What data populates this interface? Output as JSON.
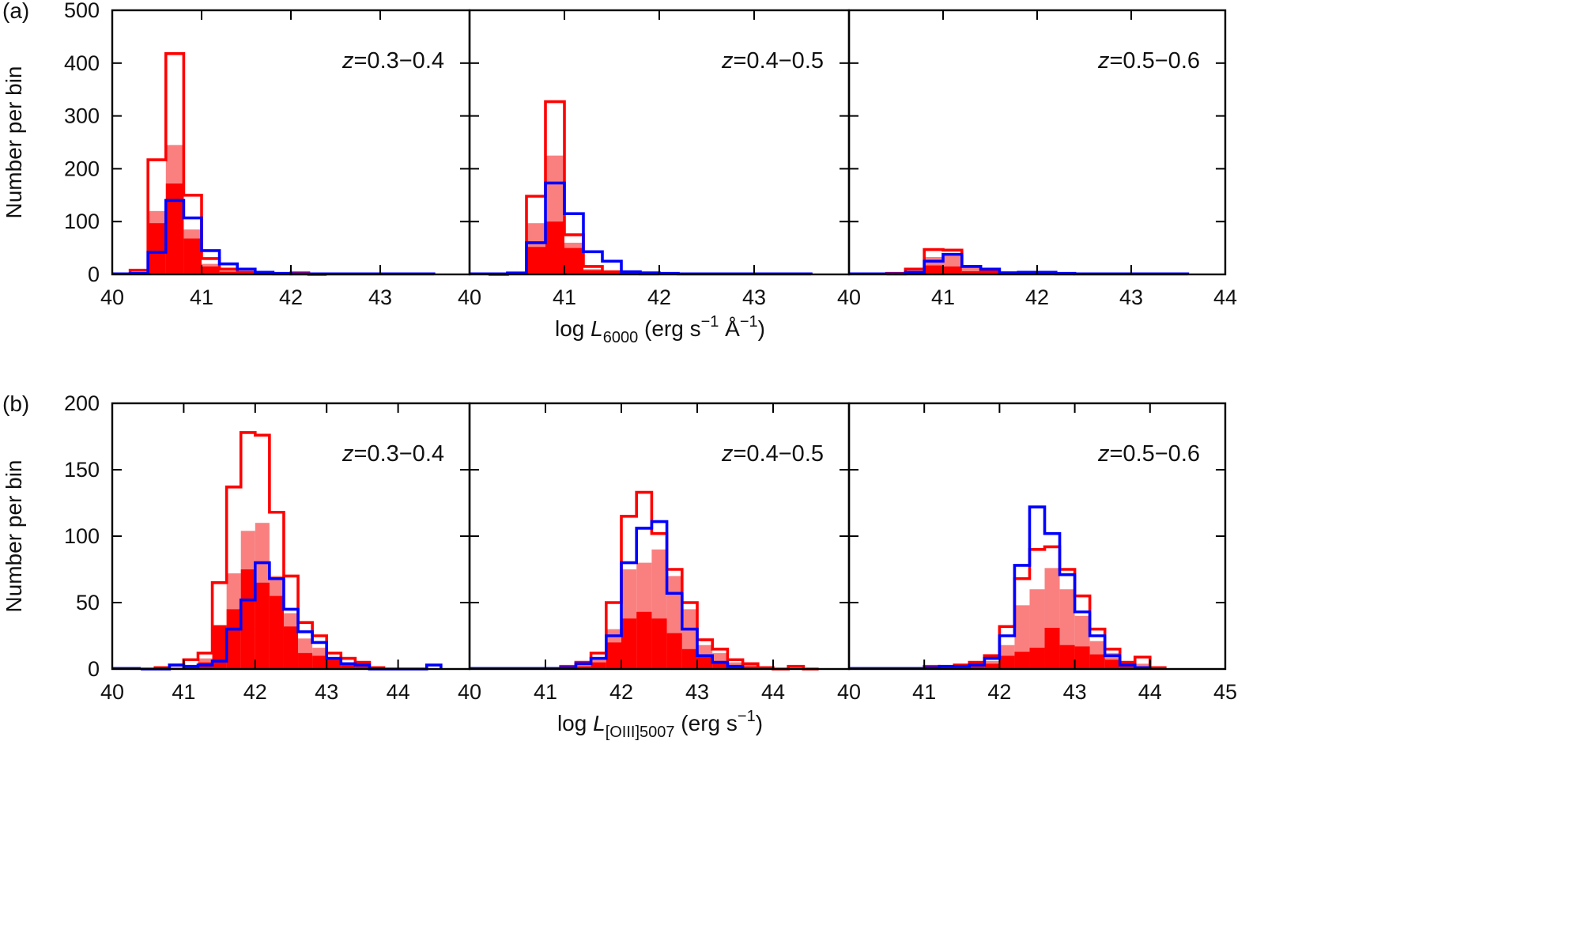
{
  "figure": {
    "y_axis_label": "Number per bin",
    "colors": {
      "all_outline": "#ff0000",
      "light_fill": "#fa8080",
      "dark_fill": "#ff0000",
      "blue_outline": "#0000ff"
    }
  },
  "chart_data": [
    {
      "type": "histogram",
      "panel_label": "(a)",
      "xlabel": {
        "prefix": "log ",
        "symbol": "L",
        "subscript": "6000",
        "units": " (erg s",
        "sup1": "−1",
        "mid": " Å",
        "sup2": "−1",
        "close": ")"
      },
      "ylabel": "Number per bin",
      "ylim": [
        0,
        500
      ],
      "yticks": [
        "0",
        "100",
        "200",
        "300",
        "400",
        "500"
      ],
      "bin_width": 0.2,
      "subplots": [
        {
          "z_prefix": "z",
          "z_range": "=0.3−0.4",
          "xlim": [
            40,
            44
          ],
          "xticks": [
            "40",
            "41",
            "42",
            "43"
          ],
          "bins_x0": [
            40.2,
            40.4,
            40.6,
            40.8,
            41.0,
            41.2,
            41.4,
            41.6,
            41.8,
            42.0,
            42.2
          ],
          "red_outline": [
            8,
            217,
            418,
            150,
            30,
            10,
            4,
            2,
            1,
            3,
            0
          ],
          "light_fill": [
            4,
            120,
            245,
            85,
            20,
            7,
            3,
            1,
            0,
            1,
            0
          ],
          "dark_fill": [
            2,
            97,
            172,
            68,
            15,
            5,
            2,
            1,
            0,
            0,
            0
          ],
          "blue_bins_x0": [
            40.2,
            40.4,
            40.6,
            40.8,
            41.0,
            41.2,
            41.4,
            41.6,
            41.8,
            42.0,
            42.2,
            42.4,
            42.6,
            42.8,
            43.0,
            43.2,
            43.4
          ],
          "blue_outline": [
            2,
            42,
            140,
            107,
            45,
            20,
            10,
            4,
            2,
            1,
            1,
            1,
            1,
            1,
            1,
            1,
            1
          ]
        },
        {
          "z_prefix": "z",
          "z_range": "=0.4−0.5",
          "xlim": [
            40,
            44
          ],
          "xticks": [
            "40",
            "41",
            "42",
            "43"
          ],
          "bins_x0": [
            40.2,
            40.4,
            40.6,
            40.8,
            41.0,
            41.2,
            41.4,
            41.6,
            41.8
          ],
          "red_outline": [
            0,
            3,
            148,
            327,
            75,
            15,
            5,
            2,
            1
          ],
          "light_fill": [
            0,
            2,
            97,
            225,
            60,
            10,
            3,
            1,
            0
          ],
          "dark_fill": [
            0,
            1,
            52,
            100,
            50,
            8,
            2,
            1,
            0
          ],
          "blue_bins_x0": [
            40.2,
            40.4,
            40.6,
            40.8,
            41.0,
            41.2,
            41.4,
            41.6,
            41.8,
            42.0,
            42.2,
            42.4,
            42.6,
            42.8,
            43.0,
            43.2,
            43.4
          ],
          "blue_outline": [
            1,
            2,
            60,
            173,
            115,
            43,
            25,
            5,
            3,
            2,
            1,
            1,
            1,
            1,
            1,
            1,
            1
          ]
        },
        {
          "z_prefix": "z",
          "z_range": "=0.5−0.6",
          "xlim": [
            40,
            44
          ],
          "xticks": [
            "40",
            "41",
            "42",
            "43",
            "44"
          ],
          "bins_x0": [
            40.4,
            40.6,
            40.8,
            41.0,
            41.2,
            41.4,
            41.6,
            41.8,
            42.0,
            42.2
          ],
          "red_outline": [
            2,
            10,
            47,
            46,
            15,
            5,
            3,
            2,
            2,
            1
          ],
          "light_fill": [
            1,
            6,
            33,
            40,
            12,
            4,
            2,
            1,
            1,
            0
          ],
          "dark_fill": [
            0,
            4,
            17,
            15,
            6,
            2,
            1,
            0,
            1,
            0
          ],
          "blue_bins_x0": [
            40.4,
            40.6,
            40.8,
            41.0,
            41.2,
            41.4,
            41.6,
            41.8,
            42.0,
            42.2,
            42.4,
            42.6,
            42.8,
            43.0,
            43.2,
            43.4
          ],
          "blue_outline": [
            1,
            4,
            25,
            38,
            15,
            10,
            3,
            4,
            4,
            2,
            1,
            1,
            1,
            1,
            1,
            1
          ]
        }
      ]
    },
    {
      "type": "histogram",
      "panel_label": "(b)",
      "xlabel": {
        "prefix": "log ",
        "symbol": "L",
        "subscript": "[OIII]5007",
        "units": " (erg s",
        "sup1": "−1",
        "close": ")"
      },
      "ylabel": "Number per bin",
      "ylim": [
        0,
        200
      ],
      "yticks": [
        "0",
        "50",
        "100",
        "150",
        "200"
      ],
      "bin_width": 0.2,
      "subplots": [
        {
          "z_prefix": "z",
          "z_range": "=0.3−0.4",
          "xlim": [
            40,
            45
          ],
          "xticks": [
            "40",
            "41",
            "42",
            "43",
            "44"
          ],
          "bins_x0": [
            40.6,
            40.8,
            41.0,
            41.2,
            41.4,
            41.6,
            41.8,
            42.0,
            42.2,
            42.4,
            42.6,
            42.8,
            43.0,
            43.2,
            43.4,
            43.6
          ],
          "red_outline": [
            1,
            3,
            7,
            12,
            65,
            137,
            178,
            176,
            118,
            70,
            35,
            25,
            12,
            8,
            5,
            1
          ],
          "light_fill": [
            0,
            1,
            3,
            8,
            33,
            72,
            104,
            110,
            70,
            42,
            23,
            16,
            8,
            4,
            3,
            0
          ],
          "dark_fill": [
            0,
            1,
            2,
            5,
            33,
            45,
            75,
            65,
            55,
            32,
            12,
            10,
            7,
            3,
            2,
            0
          ],
          "blue_bins_x0": [
            40.4,
            40.6,
            40.8,
            41.0,
            41.2,
            41.4,
            41.6,
            41.8,
            42.0,
            42.2,
            42.4,
            42.6,
            42.8,
            43.0,
            43.2,
            43.4,
            43.6,
            43.8,
            44.0,
            44.2,
            44.4
          ],
          "blue_outline": [
            0,
            0,
            3,
            2,
            3,
            6,
            30,
            52,
            80,
            68,
            45,
            28,
            20,
            8,
            4,
            3,
            0,
            0,
            0,
            0,
            3
          ]
        },
        {
          "z_prefix": "z",
          "z_range": "=0.4−0.5",
          "xlim": [
            40,
            45
          ],
          "xticks": [
            "40",
            "41",
            "42",
            "43",
            "44"
          ],
          "bins_x0": [
            41.2,
            41.4,
            41.6,
            41.8,
            42.0,
            42.2,
            42.4,
            42.6,
            42.8,
            43.0,
            43.2,
            43.4,
            43.6,
            43.8,
            44.0,
            44.2,
            44.4
          ],
          "red_outline": [
            2,
            5,
            12,
            50,
            115,
            133,
            102,
            75,
            50,
            22,
            15,
            7,
            4,
            1,
            0,
            2,
            0
          ],
          "light_fill": [
            1,
            3,
            7,
            30,
            75,
            80,
            90,
            70,
            45,
            18,
            12,
            5,
            3,
            1,
            0,
            0,
            0
          ],
          "dark_fill": [
            0,
            2,
            5,
            20,
            38,
            43,
            38,
            27,
            15,
            10,
            6,
            3,
            2,
            0,
            0,
            0,
            0
          ],
          "blue_bins_x0": [
            41.2,
            41.4,
            41.6,
            41.8,
            42.0,
            42.2,
            42.4,
            42.6,
            42.8,
            43.0,
            43.2,
            43.4
          ],
          "blue_outline": [
            1,
            4,
            8,
            25,
            80,
            106,
            111,
            57,
            30,
            10,
            5,
            2
          ]
        },
        {
          "z_prefix": "z",
          "z_range": "=0.5−0.6",
          "xlim": [
            40,
            45
          ],
          "xticks": [
            "40",
            "41",
            "42",
            "43",
            "44",
            "45"
          ],
          "bins_x0": [
            41.0,
            41.2,
            41.4,
            41.6,
            41.8,
            42.0,
            42.2,
            42.4,
            42.6,
            42.8,
            43.0,
            43.2,
            43.4,
            43.6,
            43.8,
            44.0
          ],
          "red_outline": [
            2,
            1,
            3,
            5,
            10,
            32,
            68,
            90,
            92,
            75,
            55,
            30,
            15,
            5,
            9,
            1
          ],
          "light_fill": [
            1,
            0,
            2,
            3,
            6,
            18,
            48,
            60,
            76,
            60,
            40,
            21,
            12,
            3,
            4,
            0
          ],
          "dark_fill": [
            0,
            0,
            1,
            2,
            4,
            10,
            13,
            16,
            31,
            18,
            17,
            11,
            7,
            2,
            2,
            0
          ],
          "blue_bins_x0": [
            41.0,
            41.2,
            41.4,
            41.6,
            41.8,
            42.0,
            42.2,
            42.4,
            42.6,
            42.8,
            43.0,
            43.2,
            43.4,
            43.6,
            43.8
          ],
          "blue_outline": [
            1,
            2,
            2,
            3,
            8,
            25,
            78,
            122,
            102,
            71,
            43,
            25,
            10,
            3,
            1
          ]
        }
      ]
    }
  ]
}
